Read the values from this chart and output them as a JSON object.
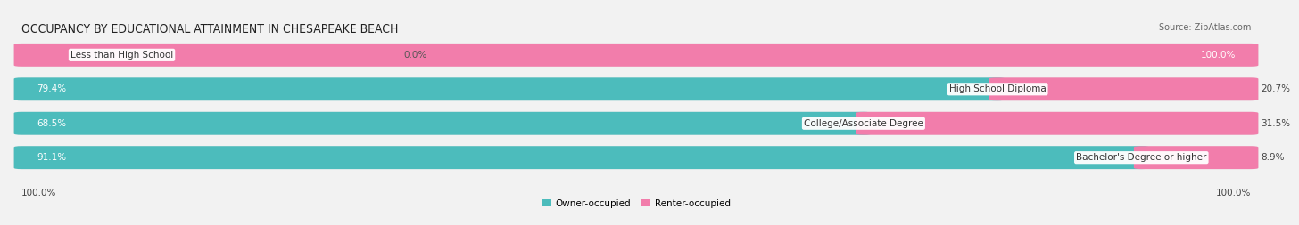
{
  "title": "OCCUPANCY BY EDUCATIONAL ATTAINMENT IN CHESAPEAKE BEACH",
  "source": "Source: ZipAtlas.com",
  "categories": [
    "Less than High School",
    "High School Diploma",
    "College/Associate Degree",
    "Bachelor's Degree or higher"
  ],
  "owner_pct": [
    0.0,
    79.4,
    68.5,
    91.1
  ],
  "renter_pct": [
    100.0,
    20.7,
    31.5,
    8.9
  ],
  "owner_color": "#4cbcbc",
  "renter_color": "#f27dab",
  "bg_color": "#f2f2f2",
  "bar_bg_color": "#e4e4e4",
  "title_fontsize": 10,
  "source_fontsize": 7,
  "cat_label_fontsize": 7.5,
  "pct_label_fontsize": 7.5,
  "legend_fontsize": 7.5,
  "bottom_left_label": "100.0%",
  "bottom_right_label": "100.0%"
}
